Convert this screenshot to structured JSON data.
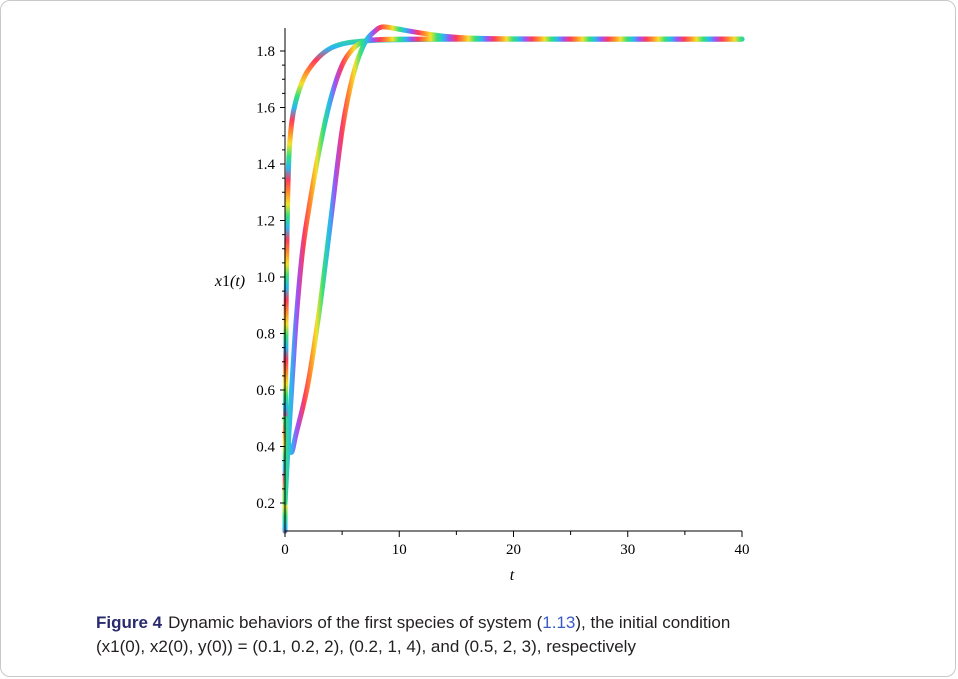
{
  "chart_data": {
    "type": "line",
    "xlabel": "t",
    "ylabel": "x1(t)",
    "ylabel_parts": {
      "name": "x",
      "index": "1",
      "arg": "(t)"
    },
    "xlim": [
      0,
      40
    ],
    "ylim": [
      0.1,
      1.9
    ],
    "xticks": [
      0,
      10,
      20,
      30,
      40
    ],
    "xtick_labels": [
      "0",
      "10",
      "20",
      "30",
      "40"
    ],
    "yticks": [
      0.2,
      0.4,
      0.6,
      0.8,
      1.0,
      1.2,
      1.4,
      1.6,
      1.8
    ],
    "ytick_labels": [
      "0.2",
      "0.4",
      "0.6",
      "0.8",
      "1.0",
      "1.2",
      "1.4",
      "1.6",
      "1.8"
    ],
    "grid": false,
    "line_style": "rainbow gradient",
    "series": [
      {
        "x": [
          0,
          0.1,
          0.3,
          0.6,
          1,
          1.5,
          2,
          3,
          4,
          5,
          6,
          8,
          10,
          15,
          20,
          30,
          40
        ],
        "y": [
          0.1,
          0.9,
          1.38,
          1.55,
          1.63,
          1.69,
          1.73,
          1.78,
          1.81,
          1.825,
          1.832,
          1.838,
          1.84,
          1.842,
          1.842,
          1.842,
          1.842
        ]
      },
      {
        "x": [
          0,
          0.3,
          0.7,
          1,
          1.5,
          2,
          3,
          4,
          5,
          6,
          7,
          8,
          10,
          15,
          20,
          30,
          40
        ],
        "y": [
          0.2,
          0.42,
          0.68,
          0.86,
          1.08,
          1.22,
          1.45,
          1.63,
          1.75,
          1.81,
          1.835,
          1.84,
          1.842,
          1.842,
          1.842,
          1.842,
          1.842
        ]
      },
      {
        "x": [
          0,
          0.5,
          1,
          2,
          3,
          4,
          5,
          6,
          7,
          8,
          8.5,
          9,
          10,
          12,
          14,
          16,
          20,
          30,
          40
        ],
        "y": [
          0.5,
          0.38,
          0.45,
          0.62,
          0.88,
          1.2,
          1.52,
          1.72,
          1.83,
          1.875,
          1.885,
          1.884,
          1.877,
          1.863,
          1.852,
          1.846,
          1.843,
          1.842,
          1.842
        ]
      }
    ]
  },
  "caption": {
    "label": "Figure 4",
    "text_before": "Dynamic behaviors of the first species of system (",
    "ref": "1.13",
    "text_after": "), the initial condition",
    "line2": "(x1(0), x2(0), y(0)) = (0.1, 0.2, 2), (0.2, 1, 4), and (0.5, 2, 3), respectively"
  }
}
